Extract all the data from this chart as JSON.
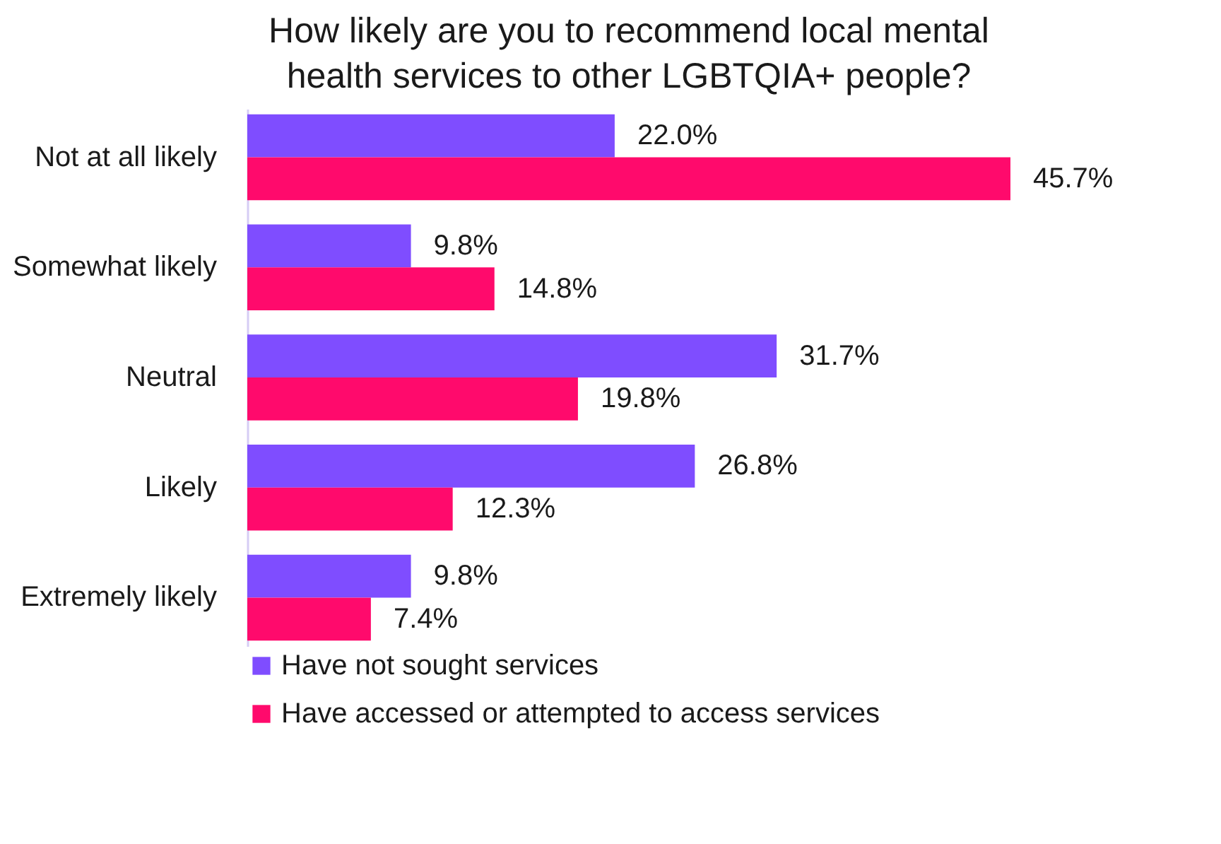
{
  "chart_data": {
    "type": "bar",
    "orientation": "horizontal",
    "title": "How likely are you to recommend local mental health services to other LGBTQIA+ people?",
    "categories": [
      "Not at all likely",
      "Somewhat likely",
      "Neutral",
      "Likely",
      "Extremely likely"
    ],
    "series": [
      {
        "name": "Have not sought services",
        "color": "#7f4dff",
        "values": [
          22.0,
          9.8,
          31.7,
          26.8,
          9.8
        ],
        "value_labels": [
          "22.0%",
          "9.8%",
          "31.7%",
          "26.8%",
          "9.8%"
        ]
      },
      {
        "name": "Have accessed or attempted to access services",
        "color": "#ff0a6c",
        "values": [
          45.7,
          14.8,
          19.8,
          12.3,
          7.4
        ],
        "value_labels": [
          "45.7%",
          "14.8%",
          "19.8%",
          "12.3%",
          "7.4%"
        ]
      }
    ],
    "legend": "bottom",
    "grid": false
  }
}
